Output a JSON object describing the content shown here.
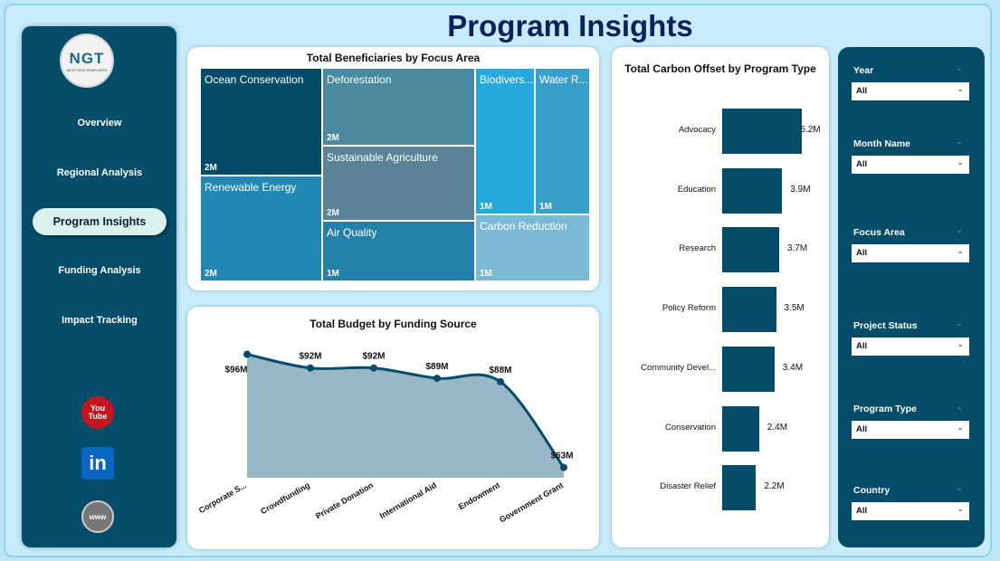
{
  "page_title": "Program Insights",
  "logo": {
    "text": "NGT",
    "tagline": "NEXT GEN TEMPLATES"
  },
  "nav": [
    {
      "label": "Overview"
    },
    {
      "label": "Regional Analysis"
    },
    {
      "label": "Program Insights",
      "active": true
    },
    {
      "label": "Funding Analysis"
    },
    {
      "label": "Impact Tracking"
    }
  ],
  "social": [
    {
      "icon": "youtube-icon",
      "label": "You Tube"
    },
    {
      "icon": "linkedin-icon",
      "label": "in"
    },
    {
      "icon": "globe-icon",
      "label": "www"
    }
  ],
  "filters": [
    {
      "label": "Year",
      "value": "All"
    },
    {
      "label": "Month Name",
      "value": "All"
    },
    {
      "label": "Focus Area",
      "value": "All"
    },
    {
      "label": "Project Status",
      "value": "All"
    },
    {
      "label": "Program Type",
      "value": "All"
    },
    {
      "label": "Country",
      "value": "All"
    }
  ],
  "chart_data": [
    {
      "type": "treemap",
      "title": "Total Beneficiaries by Focus Area",
      "items": [
        {
          "label": "Ocean Conservation",
          "value": "2M",
          "color": "#024b69"
        },
        {
          "label": "Renewable Energy",
          "value": "2M",
          "color": "#2188b5"
        },
        {
          "label": "Deforestation",
          "value": "2M",
          "color": "#4a8aa0"
        },
        {
          "label": "Sustainable Agriculture",
          "value": "2M",
          "color": "#5a8398"
        },
        {
          "label": "Air Quality",
          "value": "1M",
          "color": "#2480a8"
        },
        {
          "label": "Biodivers...",
          "value": "1M",
          "color": "#27a8dc"
        },
        {
          "label": "Water R...",
          "value": "1M",
          "color": "#389fcb"
        },
        {
          "label": "Carbon Reduction",
          "value": "1M",
          "color": "#7bbad5"
        }
      ]
    },
    {
      "type": "area",
      "title": "Total Budget by Funding Source",
      "categories": [
        "Corporate S...",
        "Crowdfunding",
        "Private Donation",
        "International Aid",
        "Endowment",
        "Government Grant"
      ],
      "values": [
        96,
        92,
        92,
        89,
        88,
        63
      ],
      "labels": [
        "$96M",
        "$92M",
        "$92M",
        "$89M",
        "$88M",
        "$63M"
      ],
      "unit": "$M",
      "color": "#034d6b",
      "fill": "#98b8c7"
    },
    {
      "type": "bar",
      "orientation": "horizontal",
      "title": "Total Carbon Offset by Program Type",
      "categories": [
        "Advocacy",
        "Education",
        "Research",
        "Policy Reform",
        "Community Devel...",
        "Conservation",
        "Disaster Relief"
      ],
      "values": [
        5.2,
        3.9,
        3.7,
        3.5,
        3.4,
        2.4,
        2.2
      ],
      "labels": [
        "5.2M",
        "3.9M",
        "3.7M",
        "3.5M",
        "3.4M",
        "2.4M",
        "2.2M"
      ],
      "unit": "M",
      "color": "#034d6b"
    }
  ]
}
